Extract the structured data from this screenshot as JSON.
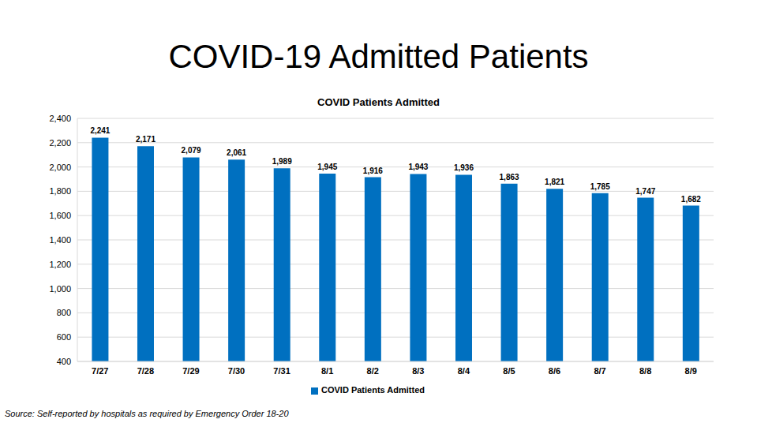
{
  "chart_data": {
    "type": "bar",
    "title": "COVID-19 Admitted Patients",
    "subtitle": "COVID Patients Admitted",
    "annotations": [
      "Source: Self-reported by hospitals as required by Emergency Order 18-20"
    ],
    "categories": [
      "7/27",
      "7/28",
      "7/29",
      "7/30",
      "7/31",
      "8/1",
      "8/2",
      "8/3",
      "8/4",
      "8/5",
      "8/6",
      "8/7",
      "8/8",
      "8/9"
    ],
    "series": [
      {
        "name": "COVID Patients Admitted",
        "color": "#0070c0",
        "values": [
          2241,
          2171,
          2079,
          2061,
          1989,
          1945,
          1916,
          1943,
          1936,
          1863,
          1821,
          1785,
          1747,
          1682
        ],
        "value_labels": [
          "2,241",
          "2,171",
          "2,079",
          "2,061",
          "1,989",
          "1,945",
          "1,916",
          "1,943",
          "1,936",
          "1,863",
          "1,821",
          "1,785",
          "1,747",
          "1,682"
        ]
      }
    ],
    "ylim": [
      400,
      2400
    ],
    "yticks": [
      400,
      600,
      800,
      {
        "value": 1000,
        "label": "1,000"
      },
      {
        "value": 1200,
        "label": "1,200"
      },
      {
        "value": 1400,
        "label": "1,400"
      },
      {
        "value": 1600,
        "label": "1,600"
      },
      {
        "value": 1800,
        "label": "1,800"
      },
      {
        "value": 2000,
        "label": "2,000"
      },
      {
        "value": 2200,
        "label": "2,200"
      },
      {
        "value": 2400,
        "label": "2,400"
      }
    ],
    "grid": true,
    "legend": "bottom",
    "data_labels": true
  }
}
